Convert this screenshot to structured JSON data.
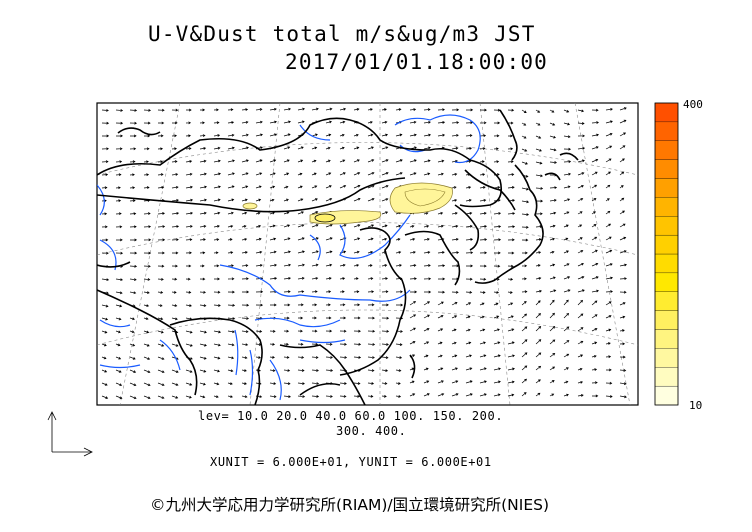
{
  "title": {
    "line1": "U-V&Dust total m/s&ug/m3 JST",
    "line2": "2017/01/01.18:00:00"
  },
  "levels": {
    "line1": "lev= 10.0 20.0 40.0 60.0 100. 150. 200.",
    "line2": "300. 400."
  },
  "units": {
    "text": "XUNIT = 6.000E+01, YUNIT = 6.000E+01"
  },
  "colorbar": {
    "max_label": "400",
    "min_label": "10",
    "colors": [
      "#ffffe0",
      "#fffcc0",
      "#fff8a0",
      "#fff480",
      "#fff060",
      "#ffec30",
      "#ffe800",
      "#ffdc00",
      "#ffd000",
      "#ffc400",
      "#ffb400",
      "#ffa000",
      "#ff8c00",
      "#ff7800",
      "#ff6400",
      "#ff5000"
    ]
  },
  "copyright": "©九州大学応用力学研究所(RIAM)/国立環境研究所(NIES)",
  "colors": {
    "coast": "#000000",
    "river": "#1a5cff",
    "dust_fill": "#fff59a",
    "dust_line": "#8a7a2a",
    "grid": "#888888"
  }
}
